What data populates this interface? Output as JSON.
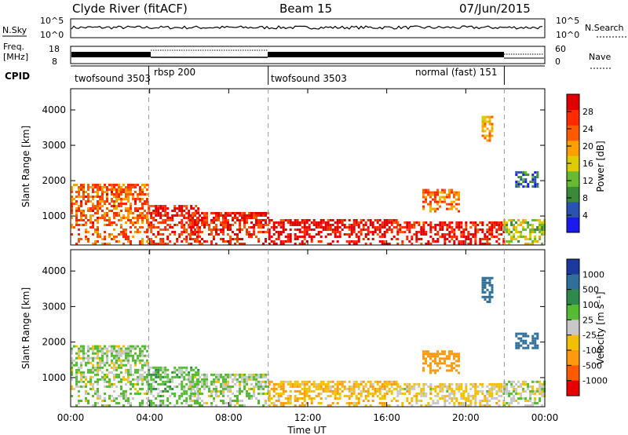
{
  "header": {
    "station": "Clyde River (fitACF)",
    "beam": "Beam 15",
    "date": "07/Jun/2015"
  },
  "noise_panel": {
    "left_label": "N.Sky",
    "right_label": "N.Search",
    "ticks": [
      "10^5",
      "10^0"
    ]
  },
  "freq_panel": {
    "left_label_top": "Freq.",
    "left_label_bottom": "[MHz]",
    "left_ticks": [
      "18",
      "8"
    ],
    "right_ticks": [
      "60",
      "0"
    ],
    "right_label": "Nave"
  },
  "cpid_panel": {
    "label": "CPID",
    "segments": [
      {
        "name": "twofsound 3503",
        "start_h": 0.0,
        "end_h": 3.95
      },
      {
        "name": "rbsp 200",
        "start_h": 3.95,
        "end_h": 10.0
      },
      {
        "name": "twofsound 3503",
        "start_h": 10.0,
        "end_h": 21.95
      },
      {
        "name": "normal (fast) 151",
        "start_h": 21.95,
        "end_h": 24.0
      }
    ]
  },
  "power_panel": {
    "ylabel": "Slant Range [km]",
    "yticks": [
      "1000",
      "2000",
      "3000",
      "4000"
    ],
    "colorbar": {
      "label": "Power [dB]",
      "ticks": [
        "4",
        "8",
        "12",
        "16",
        "20",
        "24",
        "28"
      ],
      "colors": [
        "#1a1aee",
        "#2a52b0",
        "#3a8a3a",
        "#66bb33",
        "#ddcc00",
        "#ffa000",
        "#ff5a00",
        "#ff2a00",
        "#e00000"
      ]
    }
  },
  "velocity_panel": {
    "ylabel": "Slant Range [km]",
    "yticks": [
      "1000",
      "2000",
      "3000",
      "4000"
    ],
    "colorbar": {
      "label": "Velocity [m s⁻¹]",
      "ticks": [
        "1000",
        "500",
        "100",
        "25",
        "-25",
        "-100",
        "-500",
        "-1000"
      ],
      "colors": [
        "#1a3aa0",
        "#2f6f9a",
        "#2e8a4a",
        "#55bb33",
        "#c8c8c8",
        "#f2c000",
        "#ff9a10",
        "#ff5a00",
        "#e80000"
      ]
    }
  },
  "xaxis": {
    "label": "Time UT",
    "ticks": [
      "00:00",
      "04:00",
      "08:00",
      "12:00",
      "16:00",
      "20:00",
      "00:00"
    ]
  },
  "chart_data": {
    "type": "heatmap",
    "title": "Clyde River (fitACF)  Beam 15  07/Jun/2015",
    "xlabel": "Time UT",
    "ylabel": "Slant Range [km]",
    "xlim_hours": [
      0,
      24
    ],
    "ylim_km": [
      180,
      4600
    ],
    "mode_change_hours": [
      3.95,
      10.0,
      21.95
    ],
    "power_db_range": [
      0,
      30
    ],
    "velocity_range_ms": [
      -1000,
      1000
    ],
    "echo_regions": [
      {
        "start_h": 0.0,
        "end_h": 3.9,
        "range_min_km": 180,
        "range_max_km": 1900,
        "power_db": 22,
        "velocity_ms": 20
      },
      {
        "start_h": 3.9,
        "end_h": 6.5,
        "range_min_km": 180,
        "range_max_km": 1300,
        "power_db": 26,
        "velocity_ms": 60
      },
      {
        "start_h": 6.0,
        "end_h": 10.0,
        "range_min_km": 180,
        "range_max_km": 1100,
        "power_db": 25,
        "velocity_ms": 30
      },
      {
        "start_h": 10.0,
        "end_h": 16.5,
        "range_min_km": 180,
        "range_max_km": 900,
        "power_db": 28,
        "velocity_ms": -80
      },
      {
        "start_h": 16.5,
        "end_h": 21.9,
        "range_min_km": 180,
        "range_max_km": 800,
        "power_db": 27,
        "velocity_ms": -40
      },
      {
        "start_h": 21.9,
        "end_h": 24.0,
        "range_min_km": 180,
        "range_max_km": 900,
        "power_db": 14,
        "velocity_ms": 10
      },
      {
        "start_h": 17.8,
        "end_h": 19.6,
        "range_min_km": 1100,
        "range_max_km": 1700,
        "power_db": 21,
        "velocity_ms": -200
      },
      {
        "start_h": 20.8,
        "end_h": 21.3,
        "range_min_km": 3100,
        "range_max_km": 3800,
        "power_db": 18,
        "velocity_ms": 700
      },
      {
        "start_h": 22.5,
        "end_h": 23.6,
        "range_min_km": 1800,
        "range_max_km": 2200,
        "power_db": 6,
        "velocity_ms": 900
      }
    ]
  }
}
